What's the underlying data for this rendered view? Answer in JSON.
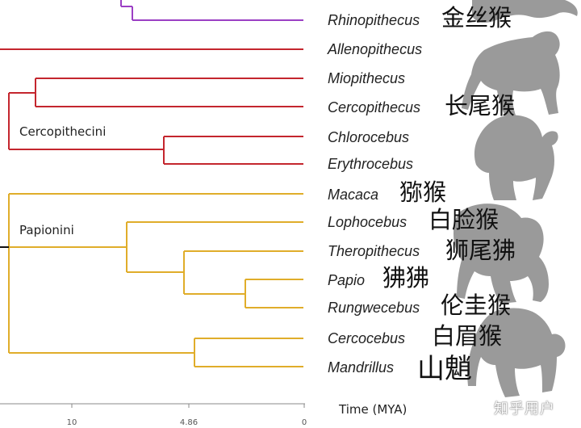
{
  "colors": {
    "colobine": "#9b3fc4",
    "cercopithecini": "#c4262e",
    "papionini": "#e0ad2a",
    "silhouette": "#9a9a9a"
  },
  "groups": {
    "cercopithecini": "Cercopithecini",
    "papionini": "Papionini"
  },
  "taxa": [
    {
      "name": "Rhinopithecus",
      "cn": "金丝猴"
    },
    {
      "name": "Allenopithecus",
      "cn": ""
    },
    {
      "name": "Miopithecus",
      "cn": ""
    },
    {
      "name": "Cercopithecus",
      "cn": "长尾猴"
    },
    {
      "name": "Chlorocebus",
      "cn": ""
    },
    {
      "name": "Erythrocebus",
      "cn": ""
    },
    {
      "name": "Macaca",
      "cn": "猕猴"
    },
    {
      "name": "Lophocebus",
      "cn": "白脸猴"
    },
    {
      "name": "Theropithecus",
      "cn": "狮尾狒"
    },
    {
      "name": "Papio",
      "cn": "狒狒"
    },
    {
      "name": "Rungwecebus",
      "cn": "伦圭猴"
    },
    {
      "name": "Cercocebus",
      "cn": "白眉猴"
    },
    {
      "name": "Mandrillus",
      "cn": "山魈"
    }
  ],
  "axis": {
    "title": "Time (MYA)",
    "ticks": [
      "10",
      "4.86",
      "0"
    ]
  },
  "watermark": "知乎用户",
  "silhouette_icons": [
    "snub-nosed-monkey-icon",
    "walking-monkey-icon",
    "sitting-monkey-icon",
    "baboon-icon",
    "mandrill-icon"
  ]
}
